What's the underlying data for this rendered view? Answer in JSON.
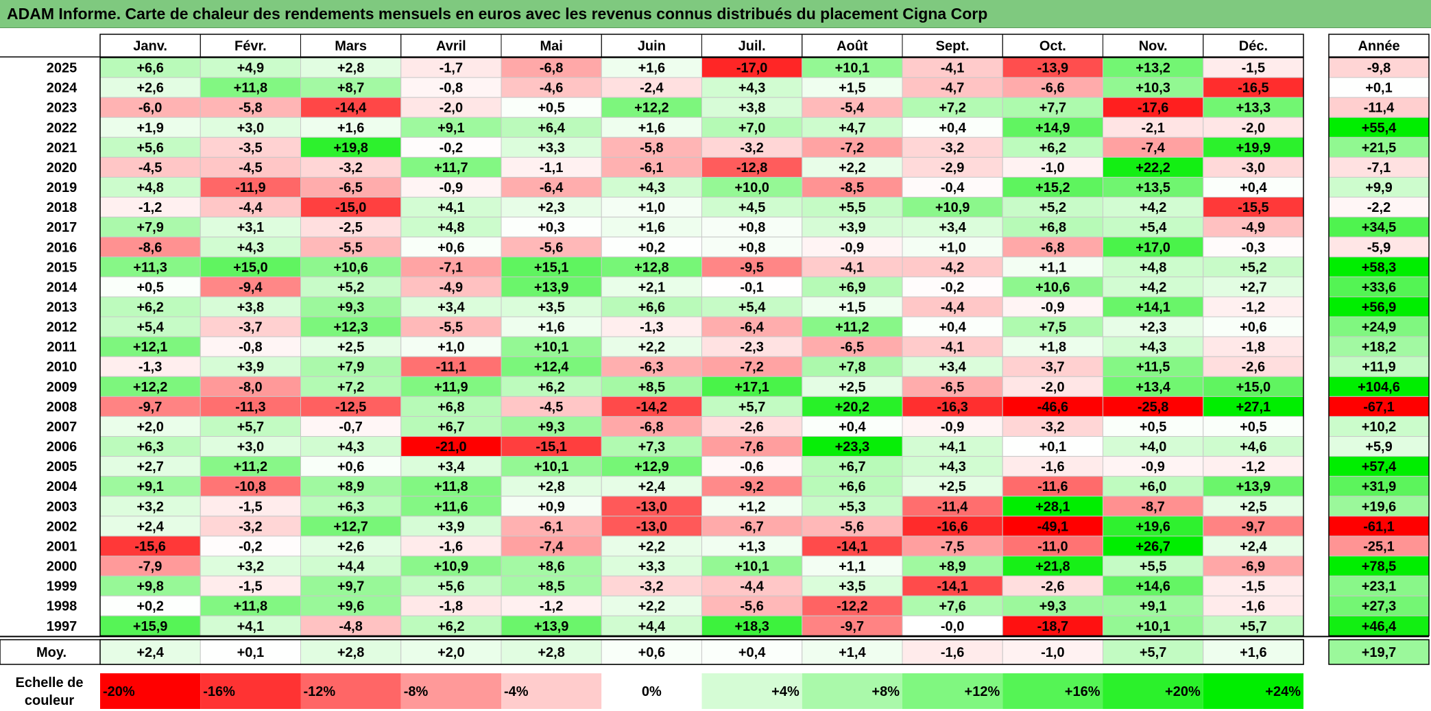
{
  "title": "ADAM Informe. Carte de chaleur des rendements mensuels en euros avec les revenus connus distribués du placement Cigna Corp",
  "chart_data": {
    "type": "heatmap",
    "title": "ADAM Informe. Carte de chaleur des rendements mensuels en euros avec les revenus connus distribués du placement Cigna Corp",
    "columns": [
      "Janv.",
      "Févr.",
      "Mars",
      "Avril",
      "Mai",
      "Juin",
      "Juil.",
      "Août",
      "Sept.",
      "Oct.",
      "Nov.",
      "Déc."
    ],
    "year_column_label": "Année",
    "average_row_label": "Moy.",
    "rows": [
      {
        "year": "2025",
        "values": [
          "+6,6",
          "+4,9",
          "+2,8",
          "-1,7",
          "-6,8",
          "+1,6",
          "-17,0",
          "+10,1",
          "-4,1",
          "-13,9",
          "+13,2",
          "-1,5"
        ],
        "annual": "-9,8"
      },
      {
        "year": "2024",
        "values": [
          "+2,6",
          "+11,8",
          "+8,7",
          "-0,8",
          "-4,6",
          "-2,4",
          "+4,3",
          "+1,5",
          "-4,7",
          "-6,6",
          "+10,3",
          "-16,5"
        ],
        "annual": "+0,1"
      },
      {
        "year": "2023",
        "values": [
          "-6,0",
          "-5,8",
          "-14,4",
          "-2,0",
          "+0,5",
          "+12,2",
          "+3,8",
          "-5,4",
          "+7,2",
          "+7,7",
          "-17,6",
          "+13,3"
        ],
        "annual": "-11,4"
      },
      {
        "year": "2022",
        "values": [
          "+1,9",
          "+3,0",
          "+1,6",
          "+9,1",
          "+6,4",
          "+1,6",
          "+7,0",
          "+4,7",
          "+0,4",
          "+14,9",
          "-2,1",
          "-2,0"
        ],
        "annual": "+55,4"
      },
      {
        "year": "2021",
        "values": [
          "+5,6",
          "-3,5",
          "+19,8",
          "-0,2",
          "+3,3",
          "-5,8",
          "-3,2",
          "-7,2",
          "-3,2",
          "+6,2",
          "-7,4",
          "+19,9"
        ],
        "annual": "+21,5"
      },
      {
        "year": "2020",
        "values": [
          "-4,5",
          "-4,5",
          "-3,2",
          "+11,7",
          "-1,1",
          "-6,1",
          "-12,8",
          "+2,2",
          "-2,9",
          "-1,0",
          "+22,2",
          "-3,0"
        ],
        "annual": "-7,1"
      },
      {
        "year": "2019",
        "values": [
          "+4,8",
          "-11,9",
          "-6,5",
          "-0,9",
          "-6,4",
          "+4,3",
          "+10,0",
          "-8,5",
          "-0,4",
          "+15,2",
          "+13,5",
          "+0,4"
        ],
        "annual": "+9,9"
      },
      {
        "year": "2018",
        "values": [
          "-1,2",
          "-4,4",
          "-15,0",
          "+4,1",
          "+2,3",
          "+1,0",
          "+4,5",
          "+5,5",
          "+10,9",
          "+5,2",
          "+4,2",
          "-15,5"
        ],
        "annual": "-2,2"
      },
      {
        "year": "2017",
        "values": [
          "+7,9",
          "+3,1",
          "-2,5",
          "+4,8",
          "+0,3",
          "+1,6",
          "+0,8",
          "+3,9",
          "+3,4",
          "+6,8",
          "+5,4",
          "-4,9"
        ],
        "annual": "+34,5"
      },
      {
        "year": "2016",
        "values": [
          "-8,6",
          "+4,3",
          "-5,5",
          "+0,6",
          "-5,6",
          "+0,2",
          "+0,8",
          "-0,9",
          "+1,0",
          "-6,8",
          "+17,0",
          "-0,3"
        ],
        "annual": "-5,9"
      },
      {
        "year": "2015",
        "values": [
          "+11,3",
          "+15,0",
          "+10,6",
          "-7,1",
          "+15,1",
          "+12,8",
          "-9,5",
          "-4,1",
          "-4,2",
          "+1,1",
          "+4,8",
          "+5,2"
        ],
        "annual": "+58,3"
      },
      {
        "year": "2014",
        "values": [
          "+0,5",
          "-9,4",
          "+5,2",
          "-4,9",
          "+13,9",
          "+2,1",
          "-0,1",
          "+6,9",
          "-0,2",
          "+10,6",
          "+4,2",
          "+2,7"
        ],
        "annual": "+33,6"
      },
      {
        "year": "2013",
        "values": [
          "+6,2",
          "+3,8",
          "+9,3",
          "+3,4",
          "+3,5",
          "+6,6",
          "+5,4",
          "+1,5",
          "-4,4",
          "-0,9",
          "+14,1",
          "-1,2"
        ],
        "annual": "+56,9"
      },
      {
        "year": "2012",
        "values": [
          "+5,4",
          "-3,7",
          "+12,3",
          "-5,5",
          "+1,6",
          "-1,3",
          "-6,4",
          "+11,2",
          "+0,4",
          "+7,5",
          "+2,3",
          "+0,6"
        ],
        "annual": "+24,9"
      },
      {
        "year": "2011",
        "values": [
          "+12,1",
          "-0,8",
          "+2,5",
          "+1,0",
          "+10,1",
          "+2,2",
          "-2,3",
          "-6,5",
          "-4,1",
          "+1,8",
          "+4,3",
          "-1,8"
        ],
        "annual": "+18,2"
      },
      {
        "year": "2010",
        "values": [
          "-1,3",
          "+3,9",
          "+7,9",
          "-11,1",
          "+12,4",
          "-6,3",
          "-7,2",
          "+7,8",
          "+3,4",
          "-3,7",
          "+11,5",
          "-2,6"
        ],
        "annual": "+11,9"
      },
      {
        "year": "2009",
        "values": [
          "+12,2",
          "-8,0",
          "+7,2",
          "+11,9",
          "+6,2",
          "+8,5",
          "+17,1",
          "+2,5",
          "-6,5",
          "-2,0",
          "+13,4",
          "+15,0"
        ],
        "annual": "+104,6"
      },
      {
        "year": "2008",
        "values": [
          "-9,7",
          "-11,3",
          "-12,5",
          "+6,8",
          "-4,5",
          "-14,2",
          "+5,7",
          "+20,2",
          "-16,3",
          "-46,6",
          "-25,8",
          "+27,1"
        ],
        "annual": "-67,1"
      },
      {
        "year": "2007",
        "values": [
          "+2,0",
          "+5,7",
          "-0,7",
          "+6,7",
          "+9,3",
          "-6,8",
          "-2,6",
          "+0,4",
          "-0,9",
          "-3,2",
          "+0,5",
          "+0,5"
        ],
        "annual": "+10,2"
      },
      {
        "year": "2006",
        "values": [
          "+6,3",
          "+3,0",
          "+4,3",
          "-21,0",
          "-15,1",
          "+7,3",
          "-7,6",
          "+23,3",
          "+4,1",
          "+0,1",
          "+4,0",
          "+4,6"
        ],
        "annual": "+5,9"
      },
      {
        "year": "2005",
        "values": [
          "+2,7",
          "+11,2",
          "+0,6",
          "+3,4",
          "+10,1",
          "+12,9",
          "-0,6",
          "+6,7",
          "+4,3",
          "-1,6",
          "-0,9",
          "-1,2"
        ],
        "annual": "+57,4"
      },
      {
        "year": "2004",
        "values": [
          "+9,1",
          "-10,8",
          "+8,9",
          "+11,8",
          "+2,8",
          "+2,4",
          "-9,2",
          "+6,6",
          "+2,5",
          "-11,6",
          "+6,0",
          "+13,9"
        ],
        "annual": "+31,9"
      },
      {
        "year": "2003",
        "values": [
          "+3,2",
          "-1,5",
          "+6,3",
          "+11,6",
          "+0,9",
          "-13,0",
          "+1,2",
          "+5,3",
          "-11,4",
          "+28,1",
          "-8,7",
          "+2,5"
        ],
        "annual": "+19,6"
      },
      {
        "year": "2002",
        "values": [
          "+2,4",
          "-3,2",
          "+12,7",
          "+3,9",
          "-6,1",
          "-13,0",
          "-6,7",
          "-5,6",
          "-16,6",
          "-49,1",
          "+19,6",
          "-9,7"
        ],
        "annual": "-61,1"
      },
      {
        "year": "2001",
        "values": [
          "-15,6",
          "-0,2",
          "+2,6",
          "-1,6",
          "-7,4",
          "+2,2",
          "+1,3",
          "-14,1",
          "-7,5",
          "-11,0",
          "+26,7",
          "+2,4"
        ],
        "annual": "-25,1"
      },
      {
        "year": "2000",
        "values": [
          "-7,9",
          "+3,2",
          "+4,4",
          "+10,9",
          "+8,6",
          "+3,3",
          "+10,1",
          "+1,1",
          "+8,9",
          "+21,8",
          "+5,5",
          "-6,9"
        ],
        "annual": "+78,5"
      },
      {
        "year": "1999",
        "values": [
          "+9,8",
          "-1,5",
          "+9,7",
          "+5,6",
          "+8,5",
          "-3,2",
          "-4,4",
          "+3,5",
          "-14,1",
          "-2,6",
          "+14,6",
          "-1,5"
        ],
        "annual": "+23,1"
      },
      {
        "year": "1998",
        "values": [
          "+0,2",
          "+11,8",
          "+9,6",
          "-1,8",
          "-1,2",
          "+2,2",
          "-5,6",
          "-12,2",
          "+7,6",
          "+9,3",
          "+9,1",
          "-1,6"
        ],
        "annual": "+27,3"
      },
      {
        "year": "1997",
        "values": [
          "+15,9",
          "+4,1",
          "-4,8",
          "+6,2",
          "+13,9",
          "+4,4",
          "+18,3",
          "-9,7",
          "-0,0",
          "-18,7",
          "+10,1",
          "+5,7"
        ],
        "annual": "+46,4"
      }
    ],
    "averages": {
      "values": [
        "+2,4",
        "+0,1",
        "+2,8",
        "+2,0",
        "+2,8",
        "+0,6",
        "+0,4",
        "+1,4",
        "-1,6",
        "-1,0",
        "+5,7",
        "+1,6"
      ],
      "annual": "+19,7"
    },
    "color_scale": {
      "label": "Echelle de couleur",
      "stops": [
        "-20%",
        "-16%",
        "-12%",
        "-8%",
        "-4%",
        "0%",
        "+4%",
        "+8%",
        "+12%",
        "+16%",
        "+20%",
        "+24%"
      ],
      "stop_values": [
        -20,
        -16,
        -12,
        -8,
        -4,
        0,
        4,
        8,
        12,
        16,
        20,
        24
      ]
    },
    "colors": {
      "negative_max": "#ff0000",
      "neutral": "#ffffff",
      "positive_max": "#00ee00",
      "title_bar": "#7fc97f"
    }
  }
}
